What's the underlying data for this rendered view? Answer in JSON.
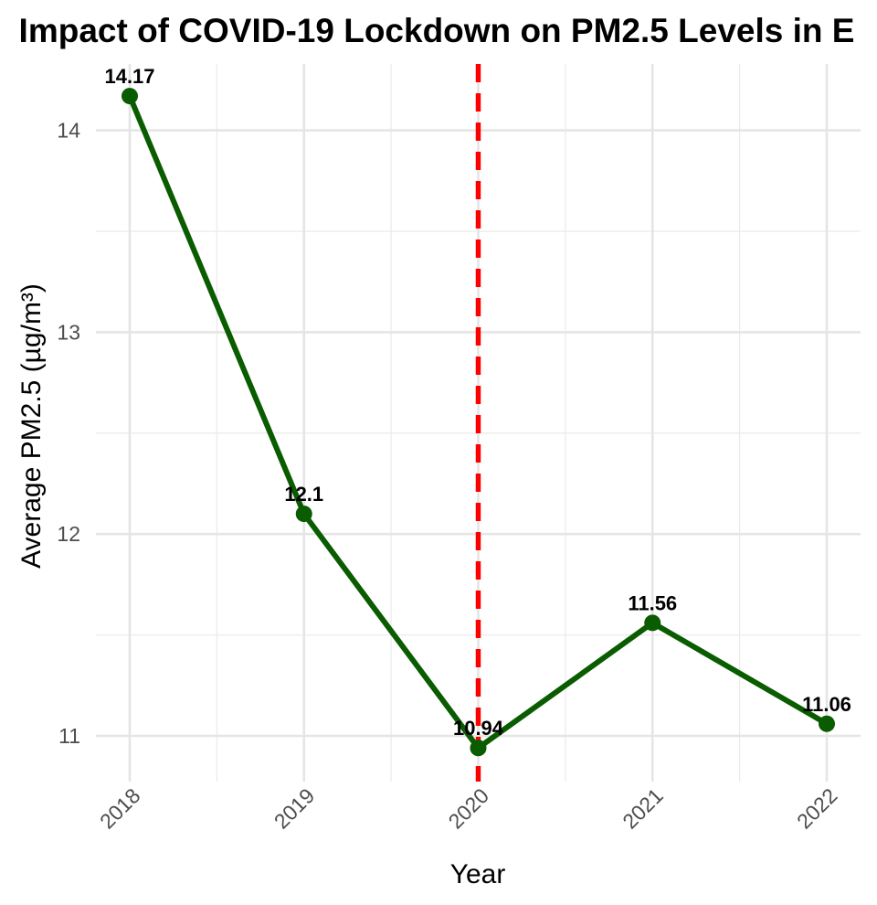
{
  "chart_data": {
    "type": "line",
    "title": "Impact of COVID-19 Lockdown on PM2.5 Levels in E",
    "xlabel": "Year",
    "ylabel": "Average PM2.5 (µg/m³)",
    "x": [
      "2018",
      "2019",
      "2020",
      "2021",
      "2022"
    ],
    "series": [
      {
        "values": [
          14.17,
          12.1,
          10.94,
          11.56,
          11.06
        ],
        "color": "#0a5c00"
      }
    ],
    "data_labels": [
      "14.17",
      "12.1",
      "10.94",
      "11.56",
      "11.06"
    ],
    "y_ticks": [
      "11",
      "12",
      "13",
      "14"
    ],
    "ylim": [
      10.83,
      14.28
    ],
    "grid": true,
    "legend": "none",
    "annotations": [
      {
        "type": "vline",
        "x": "2020",
        "style": "dashed",
        "color": "#ff0000"
      }
    ]
  }
}
